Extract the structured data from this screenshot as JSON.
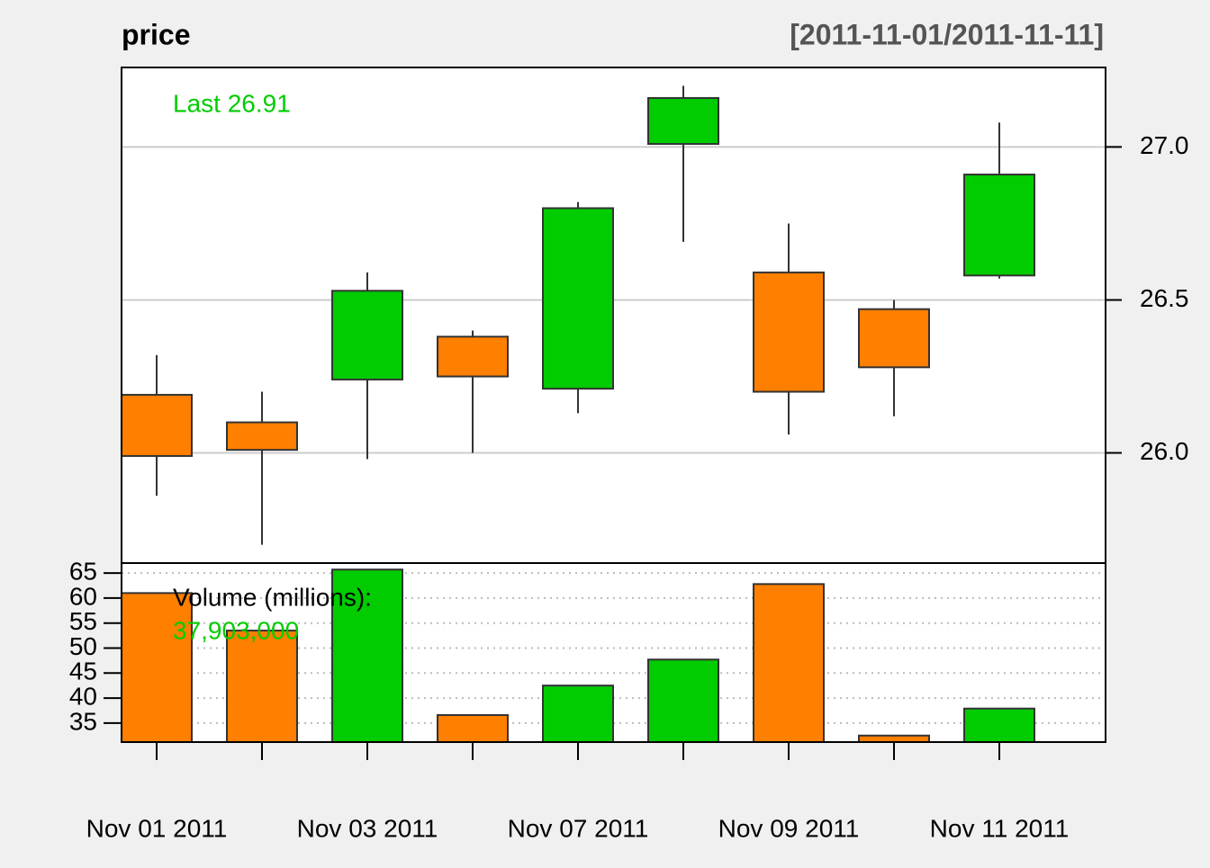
{
  "chart_data": [
    {
      "type": "candlestick",
      "title": "price",
      "subtitle": "[2011-11-01/2011-11-11]",
      "annotation": "Last 26.91",
      "categories": [
        "Nov 01 2011",
        null,
        "Nov 03 2011",
        null,
        "Nov 07 2011",
        null,
        "Nov 09 2011",
        null,
        "Nov 11 2011"
      ],
      "open": [
        26.19,
        26.1,
        26.24,
        26.38,
        26.21,
        27.01,
        26.59,
        26.47,
        26.58
      ],
      "high": [
        26.32,
        26.2,
        26.59,
        26.4,
        26.82,
        27.2,
        26.75,
        26.5,
        27.08
      ],
      "low": [
        25.86,
        25.7,
        25.98,
        26.0,
        26.13,
        26.69,
        26.06,
        26.12,
        26.57
      ],
      "close": [
        25.99,
        26.01,
        26.53,
        26.25,
        26.8,
        27.16,
        26.2,
        26.28,
        26.91
      ],
      "up_color": "#00cc00",
      "down_color": "#ff7f00",
      "ylim": [
        25.64,
        27.26
      ],
      "yticks": [
        {
          "value": 26,
          "label": "26.0"
        },
        26.5,
        {
          "value": 27,
          "label": "27.0"
        }
      ],
      "grid": true
    },
    {
      "type": "bar",
      "annotation": "Volume (millions):",
      "annotation_value": "37,903,000",
      "values": [
        61.0,
        53.5,
        65.7,
        36.6,
        42.5,
        47.7,
        62.8,
        32.5,
        37.9
      ],
      "colors": [
        "#ff7f00",
        "#ff7f00",
        "#00cc00",
        "#ff7f00",
        "#00cc00",
        "#00cc00",
        "#ff7f00",
        "#ff7f00",
        "#00cc00"
      ],
      "ylim": [
        31.2,
        67.0
      ],
      "yticks": [
        35,
        40,
        45,
        50,
        55,
        60,
        65
      ],
      "grid": true
    }
  ]
}
